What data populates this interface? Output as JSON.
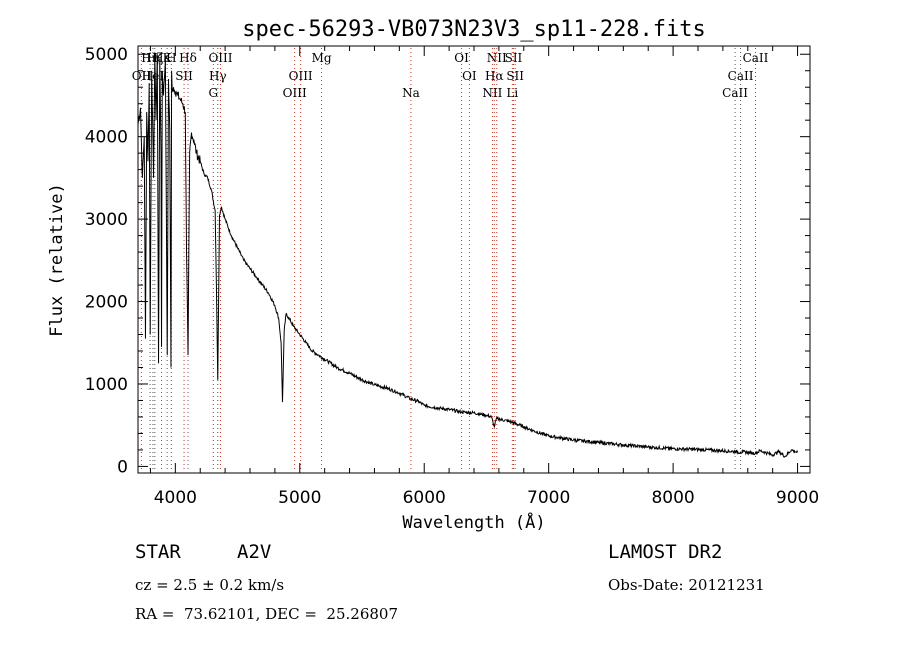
{
  "chart_data": {
    "type": "line",
    "title": "spec-56293-VB073N23V3_sp11-228.fits",
    "xlabel": "Wavelength (Å)",
    "ylabel": "Flux (relative)",
    "xlim": [
      3700,
      9100
    ],
    "ylim": [
      -80,
      5100
    ],
    "xticks": [
      4000,
      5000,
      6000,
      7000,
      8000,
      9000
    ],
    "xtick_labels": [
      "4000",
      "5000",
      "6000",
      "7000",
      "8000",
      "9000"
    ],
    "yticks": [
      0,
      1000,
      2000,
      3000,
      4000,
      5000
    ],
    "ytick_labels": [
      "0",
      "1000",
      "2000",
      "3000",
      "4000",
      "5000"
    ],
    "grid": false,
    "series": [
      {
        "x": [
          3700,
          3720,
          3735,
          3750,
          3760,
          3770,
          3780,
          3790,
          3798,
          3810,
          3825,
          3835,
          3845,
          3855,
          3865,
          3875,
          3885,
          3889,
          3895,
          3905,
          3920,
          3935,
          3945,
          3955,
          3965,
          3970,
          3975,
          3985,
          4000,
          4020,
          4040,
          4060,
          4080,
          4090,
          4102,
          4115,
          4130,
          4150,
          4170,
          4200,
          4230,
          4260,
          4290,
          4320,
          4330,
          4341,
          4355,
          4370,
          4400,
          4450,
          4500,
          4550,
          4600,
          4650,
          4700,
          4750,
          4800,
          4830,
          4850,
          4861,
          4875,
          4890,
          4920,
          4950,
          5000,
          5050,
          5100,
          5150,
          5200,
          5300,
          5400,
          5500,
          5600,
          5700,
          5800,
          5890,
          5950,
          6000,
          6100,
          6200,
          6300,
          6400,
          6500,
          6540,
          6563,
          6580,
          6600,
          6700,
          6800,
          6900,
          7000,
          7200,
          7400,
          7600,
          7800,
          8000,
          8200,
          8400,
          8500,
          8540,
          8560,
          8600,
          8660,
          8700,
          8800,
          8850,
          8900,
          8950,
          9000
        ],
        "y": [
          4150,
          4350,
          3500,
          4000,
          1550,
          4300,
          3700,
          4650,
          1600,
          4800,
          3500,
          4950,
          4200,
          5000,
          1250,
          4950,
          3800,
          1450,
          4800,
          4500,
          4950,
          1350,
          4700,
          4100,
          1200,
          4800,
          4550,
          4600,
          4550,
          4500,
          4450,
          4400,
          4300,
          2600,
          1350,
          3800,
          4050,
          3950,
          3800,
          3700,
          3550,
          3500,
          3350,
          3100,
          2200,
          1050,
          3050,
          3150,
          3000,
          2800,
          2650,
          2500,
          2400,
          2300,
          2200,
          2100,
          1950,
          1800,
          1500,
          780,
          1650,
          1850,
          1780,
          1700,
          1600,
          1500,
          1400,
          1350,
          1300,
          1200,
          1130,
          1050,
          990,
          950,
          890,
          820,
          790,
          740,
          710,
          690,
          660,
          650,
          620,
          600,
          480,
          580,
          575,
          540,
          480,
          420,
          370,
          320,
          290,
          260,
          235,
          215,
          205,
          190,
          180,
          170,
          175,
          170,
          160,
          190,
          140,
          180,
          120,
          200,
          170
        ]
      }
    ],
    "line_labels": [
      {
        "name": "Hε",
        "x": 3889,
        "row": 0
      },
      {
        "name": "Hζ",
        "x": 3835,
        "row": 0
      },
      {
        "name": "Hη",
        "x": 3797,
        "row": 0
      },
      {
        "name": "OII",
        "x": 3727,
        "row": 1
      },
      {
        "name": "HeI",
        "x": 3820,
        "row": 1
      },
      {
        "name": "K",
        "x": 3934,
        "row": 0
      },
      {
        "name": "H",
        "x": 3968,
        "row": 0
      },
      {
        "name": "SII",
        "x": 4070,
        "row": 1
      },
      {
        "name": "Hδ",
        "x": 4102,
        "row": 0
      },
      {
        "name": "OIII",
        "x": 4363,
        "row": 0
      },
      {
        "name": "Hγ",
        "x": 4341,
        "row": 1
      },
      {
        "name": "G",
        "x": 4305,
        "row": 2
      },
      {
        "name": "Mg",
        "x": 5175,
        "row": 0
      },
      {
        "name": "OIII",
        "x": 5007,
        "row": 1
      },
      {
        "name": "OIII",
        "x": 4959,
        "row": 2
      },
      {
        "name": "Na",
        "x": 5893,
        "row": 2
      },
      {
        "name": "OI",
        "x": 6300,
        "row": 0
      },
      {
        "name": "OI",
        "x": 6363,
        "row": 1
      },
      {
        "name": "NII",
        "x": 6583,
        "row": 0
      },
      {
        "name": "Hα",
        "x": 6563,
        "row": 1
      },
      {
        "name": "NII",
        "x": 6548,
        "row": 2
      },
      {
        "name": "SII",
        "x": 6717,
        "row": 0
      },
      {
        "name": "SII",
        "x": 6731,
        "row": 1
      },
      {
        "name": "Li",
        "x": 6708,
        "row": 2
      },
      {
        "name": "CaII",
        "x": 8662,
        "row": 0
      },
      {
        "name": "CaII",
        "x": 8542,
        "row": 1
      },
      {
        "name": "CaII",
        "x": 8498,
        "row": 2
      }
    ],
    "colors": {
      "spectrum": "#000000",
      "emission_line": "#c0392b",
      "absorption_line": "#555555"
    }
  },
  "info": {
    "object_class": "STAR",
    "subclass": "A2V",
    "survey": "LAMOST DR2",
    "redshift": "cz = 2.5 ± 0.2 km/s",
    "obs_date": "Obs-Date: 20121231",
    "coords": "RA =  73.62101, DEC =  25.26807"
  }
}
